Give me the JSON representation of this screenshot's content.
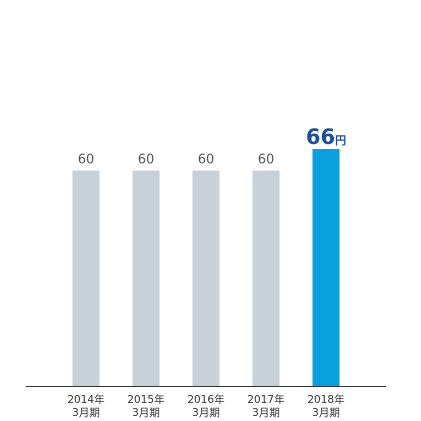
{
  "chart_data": {
    "type": "bar",
    "categories": [
      [
        "2014年",
        "3月期"
      ],
      [
        "2015年",
        "3月期"
      ],
      [
        "2016年",
        "3月期"
      ],
      [
        "2017年",
        "3月期"
      ],
      [
        "2018年",
        "3月期"
      ]
    ],
    "values": [
      60,
      60,
      60,
      60,
      66
    ],
    "value_labels": [
      "60",
      "60",
      "60",
      "60",
      "66"
    ],
    "highlight_unit": "円",
    "highlight_index": 4,
    "ylim": [
      0,
      66
    ],
    "grid": false,
    "colors": {
      "bar": "#c9d1d8",
      "highlight": "#0a9fde",
      "label": "#555555",
      "highlight_label": "#1f4e96",
      "axis": "#333333",
      "category_text": "#333333"
    }
  }
}
